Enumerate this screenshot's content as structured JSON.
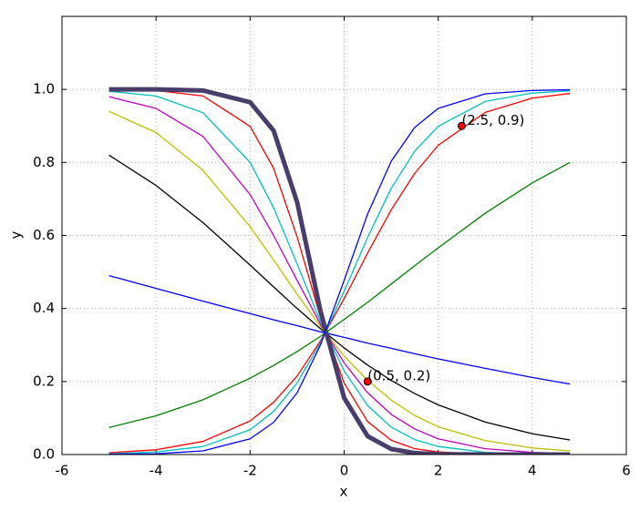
{
  "chart_data": {
    "type": "line",
    "x_label": "x",
    "y_label": "y",
    "xlim": [
      -6,
      6
    ],
    "ylim": [
      0,
      1.2
    ],
    "xticks": [
      -6,
      -4,
      -2,
      0,
      2,
      4,
      6
    ],
    "yticks": [
      {
        "value": 0,
        "label": "0.0"
      },
      0.2,
      0.4,
      0.6,
      0.8,
      {
        "value": 1,
        "label": "1.0"
      }
    ],
    "grid": true,
    "x": [
      -5,
      -4,
      -3,
      -2,
      -1.5,
      -1,
      -0.5,
      0,
      0.5,
      1,
      1.5,
      2,
      3,
      4,
      4.8
    ],
    "series": [
      {
        "color": "#0000ff",
        "values": [
          0.49,
          0.455,
          0.42,
          0.386,
          0.369,
          0.353,
          0.336,
          0.321,
          0.305,
          0.291,
          0.276,
          0.262,
          0.236,
          0.211,
          0.193
        ]
      },
      {
        "color": "#000000",
        "values": [
          0.82,
          0.737,
          0.635,
          0.519,
          0.459,
          0.4,
          0.344,
          0.292,
          0.245,
          0.203,
          0.167,
          0.136,
          0.089,
          0.057,
          0.04
        ]
      },
      {
        "color": "#bfbf00",
        "values": [
          0.94,
          0.882,
          0.778,
          0.624,
          0.533,
          0.439,
          0.35,
          0.27,
          0.203,
          0.149,
          0.107,
          0.076,
          0.038,
          0.018,
          0.01
        ]
      },
      {
        "color": "#bf00bf",
        "values": [
          0.98,
          0.948,
          0.871,
          0.712,
          0.6,
          0.477,
          0.356,
          0.251,
          0.169,
          0.11,
          0.07,
          0.043,
          0.016,
          0.006,
          0.003
        ]
      },
      {
        "color": "#00bfbf",
        "values": [
          0.995,
          0.982,
          0.936,
          0.8,
          0.676,
          0.522,
          0.363,
          0.229,
          0.134,
          0.075,
          0.041,
          0.022,
          0.006,
          0.002,
          0.001
        ]
      },
      {
        "color": "#ff0000",
        "values": [
          0.999,
          0.997,
          0.982,
          0.899,
          0.784,
          0.596,
          0.374,
          0.196,
          0.09,
          0.039,
          0.016,
          0.007,
          0.001,
          0.0,
          0.0
        ]
      },
      {
        "color": "#483d6b",
        "values": [
          1.0,
          1.0,
          0.997,
          0.965,
          0.887,
          0.691,
          0.391,
          0.155,
          0.05,
          0.015,
          0.004,
          0.001,
          0.0,
          0.0,
          0.0
        ]
      },
      {
        "color": "#008000",
        "values": [
          0.074,
          0.106,
          0.15,
          0.209,
          0.244,
          0.282,
          0.324,
          0.37,
          0.417,
          0.467,
          0.517,
          0.566,
          0.661,
          0.744,
          0.8
        ]
      },
      {
        "color": "#ff0000",
        "values": [
          0.005,
          0.013,
          0.036,
          0.092,
          0.143,
          0.215,
          0.312,
          0.427,
          0.552,
          0.67,
          0.77,
          0.847,
          0.937,
          0.976,
          0.989
        ]
      },
      {
        "color": "#00bfbf",
        "values": [
          0.002,
          0.007,
          0.022,
          0.068,
          0.118,
          0.196,
          0.307,
          0.447,
          0.595,
          0.729,
          0.831,
          0.899,
          0.967,
          0.99,
          0.996
        ]
      },
      {
        "color": "#0000ff",
        "values": [
          0.001,
          0.002,
          0.01,
          0.043,
          0.088,
          0.169,
          0.301,
          0.477,
          0.659,
          0.803,
          0.896,
          0.948,
          0.988,
          0.997,
          0.999
        ]
      }
    ],
    "annotations": [
      {
        "x": 2.5,
        "y": 0.9,
        "text": "(2.5, 0.9)",
        "color": "#ff0000"
      },
      {
        "x": 0.5,
        "y": 0.2,
        "text": "(0.5, 0.2)",
        "color": "#ff0000"
      }
    ]
  }
}
